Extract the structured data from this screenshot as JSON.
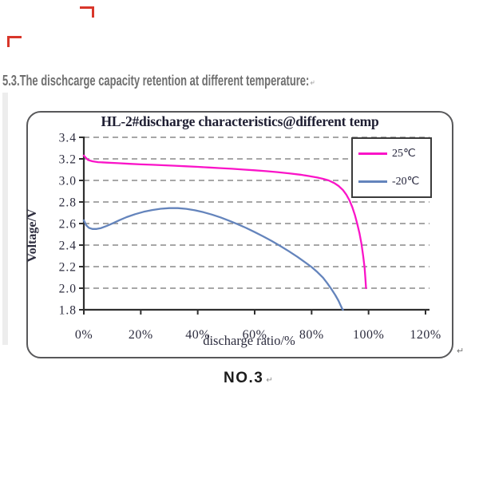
{
  "page": {
    "heading": "5.3.The dischcarge capacity retention at different temperature:",
    "heading_return_mark": "↵",
    "caption": "NO.3",
    "caption_return_mark": "↵",
    "box_return_mark": "↵"
  },
  "colors": {
    "heading_text": "#6f6f6f",
    "series_25c": "#FA14C8",
    "series_minus20c": "#6484BC",
    "gridline": "#8a8a8a",
    "axis": "#2f2f2f",
    "chart_text": "#2c2c3e",
    "box_border": "#58585a",
    "red_mark": "#d8362a"
  },
  "chart_data": {
    "type": "line",
    "title": "HL-2#discharge characteristics@different temp",
    "xlabel": "discharge ratio/%",
    "ylabel": "Voltage/V",
    "xlim": [
      0,
      120
    ],
    "ylim": [
      1.8,
      3.4
    ],
    "grid": "horizontal-dashed",
    "legend_position": "top-right",
    "x_tick_labels": [
      "0%",
      "20%",
      "40%",
      "60%",
      "80%",
      "100%",
      "120%"
    ],
    "x_tick_values": [
      0,
      20,
      40,
      60,
      80,
      100,
      120
    ],
    "y_tick_labels": [
      "3.4",
      "3.2",
      "3.0",
      "2.8",
      "2.6",
      "2.4",
      "2.2",
      "2.0",
      "1.8"
    ],
    "y_tick_values": [
      3.4,
      3.2,
      3.0,
      2.8,
      2.6,
      2.4,
      2.2,
      2.0,
      1.8
    ],
    "series": [
      {
        "name": "25℃",
        "color": "#FA14C8",
        "points": [
          [
            0,
            3.23
          ],
          [
            0.7,
            3.21
          ],
          [
            1.5,
            3.19
          ],
          [
            3,
            3.178
          ],
          [
            5,
            3.17
          ],
          [
            8,
            3.165
          ],
          [
            12,
            3.16
          ],
          [
            16,
            3.154
          ],
          [
            20,
            3.149
          ],
          [
            24,
            3.145
          ],
          [
            28,
            3.141
          ],
          [
            32,
            3.136
          ],
          [
            36,
            3.131
          ],
          [
            40,
            3.126
          ],
          [
            44,
            3.12
          ],
          [
            48,
            3.114
          ],
          [
            52,
            3.108
          ],
          [
            56,
            3.101
          ],
          [
            60,
            3.094
          ],
          [
            64,
            3.086
          ],
          [
            68,
            3.077
          ],
          [
            72,
            3.066
          ],
          [
            76,
            3.053
          ],
          [
            79,
            3.041
          ],
          [
            82,
            3.027
          ],
          [
            84,
            3.015
          ],
          [
            86,
            3.0
          ],
          [
            88,
            2.975
          ],
          [
            89.5,
            2.948
          ],
          [
            91,
            2.91
          ],
          [
            92.2,
            2.868
          ],
          [
            93.3,
            2.815
          ],
          [
            94.3,
            2.752
          ],
          [
            95.2,
            2.68
          ],
          [
            96,
            2.6
          ],
          [
            96.8,
            2.51
          ],
          [
            97.5,
            2.41
          ],
          [
            98.1,
            2.3
          ],
          [
            98.6,
            2.19
          ],
          [
            98.9,
            2.09
          ],
          [
            99.1,
            2.0
          ]
        ]
      },
      {
        "name": "-20℃",
        "color": "#6484BC",
        "points": [
          [
            0,
            2.63
          ],
          [
            0.8,
            2.585
          ],
          [
            1.8,
            2.56
          ],
          [
            3,
            2.55
          ],
          [
            4.5,
            2.55
          ],
          [
            6,
            2.558
          ],
          [
            8,
            2.577
          ],
          [
            10,
            2.601
          ],
          [
            12.5,
            2.631
          ],
          [
            15,
            2.659
          ],
          [
            18,
            2.687
          ],
          [
            21,
            2.709
          ],
          [
            24,
            2.725
          ],
          [
            27,
            2.737
          ],
          [
            30,
            2.743
          ],
          [
            33,
            2.743
          ],
          [
            36,
            2.736
          ],
          [
            39,
            2.723
          ],
          [
            42,
            2.705
          ],
          [
            45,
            2.683
          ],
          [
            48,
            2.657
          ],
          [
            51,
            2.627
          ],
          [
            54,
            2.594
          ],
          [
            57,
            2.559
          ],
          [
            60,
            2.521
          ],
          [
            63,
            2.481
          ],
          [
            66,
            2.438
          ],
          [
            69,
            2.392
          ],
          [
            72,
            2.343
          ],
          [
            75,
            2.291
          ],
          [
            78,
            2.235
          ],
          [
            80,
            2.196
          ],
          [
            82,
            2.15
          ],
          [
            84,
            2.098
          ],
          [
            85.5,
            2.047
          ],
          [
            87,
            1.99
          ],
          [
            88.3,
            1.937
          ],
          [
            89.4,
            1.885
          ],
          [
            90.2,
            1.84
          ],
          [
            90.8,
            1.805
          ],
          [
            91,
            1.8
          ]
        ]
      }
    ]
  }
}
